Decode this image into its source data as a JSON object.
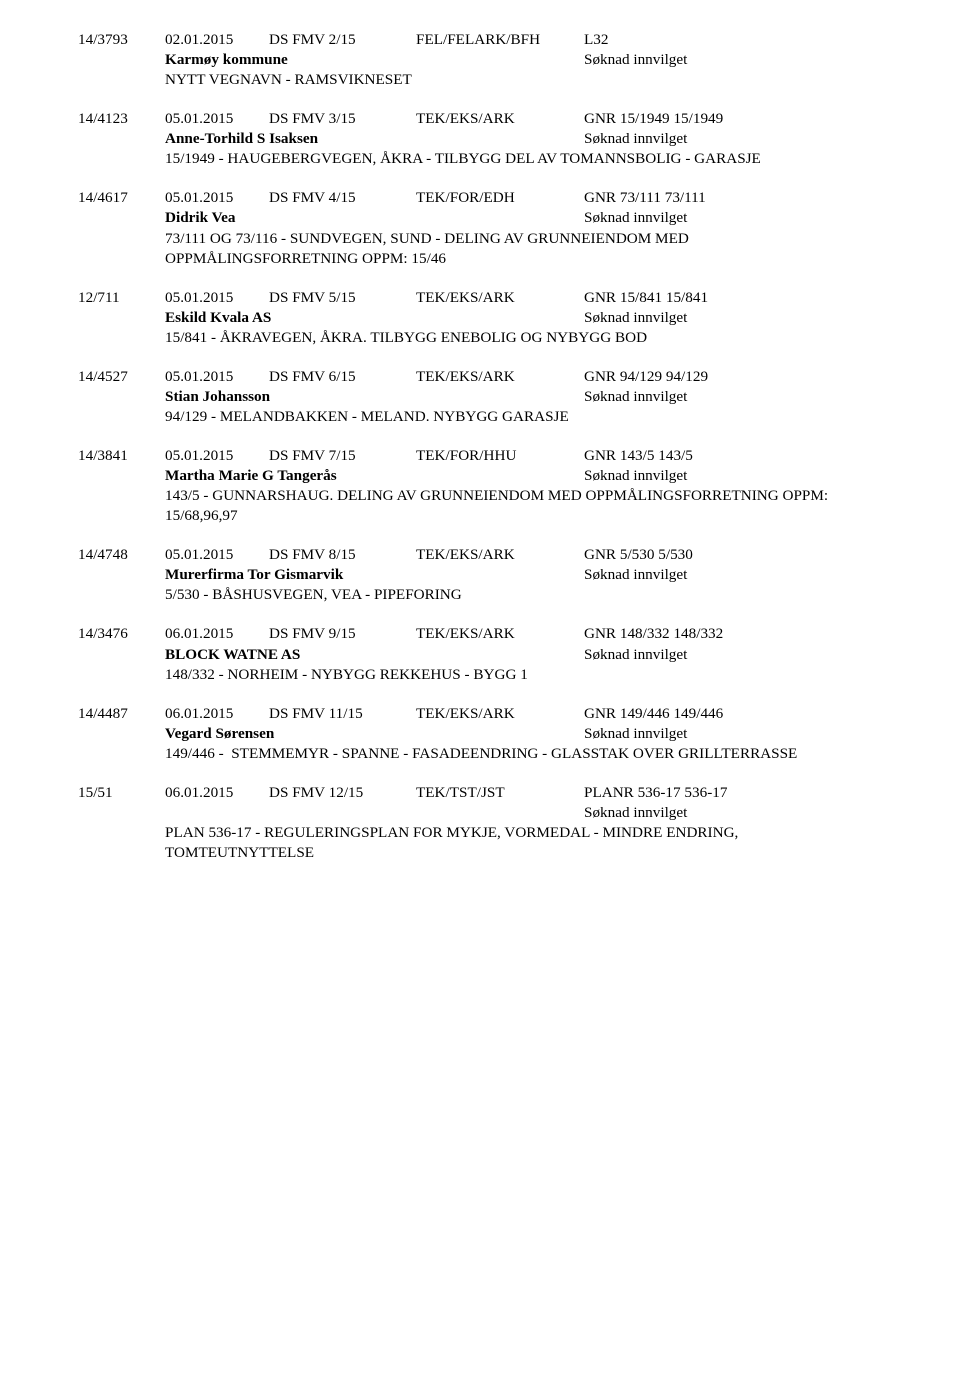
{
  "entries": [
    {
      "case_id": "14/3793",
      "date": "02.01.2015",
      "doc": "DS FMV 2/15",
      "ref": "FEL/FELARK/BFH",
      "gnr": "L32",
      "applicant": "Karmøy kommune",
      "status": "Søknad innvilget",
      "desc": "NYTT VEGNAVN - RAMSVIKNESET"
    },
    {
      "case_id": "14/4123",
      "date": "05.01.2015",
      "doc": "DS FMV 3/15",
      "ref": "TEK/EKS/ARK",
      "gnr": "GNR 15/1949 15/1949",
      "applicant": "Anne-Torhild S Isaksen",
      "status": "Søknad innvilget",
      "desc": "15/1949 - HAUGEBERGVEGEN, ÅKRA - TILBYGG DEL AV TOMANNSBOLIG - GARASJE"
    },
    {
      "case_id": "14/4617",
      "date": "05.01.2015",
      "doc": "DS FMV 4/15",
      "ref": "TEK/FOR/EDH",
      "gnr": "GNR 73/111 73/111",
      "applicant": "Didrik Vea",
      "status": "Søknad innvilget",
      "desc": "73/111 OG 73/116 - SUNDVEGEN, SUND - DELING AV GRUNNEIENDOM MED OPPMÅLINGSFORRETNING OPPM: 15/46"
    },
    {
      "case_id": "12/711",
      "date": "05.01.2015",
      "doc": "DS FMV 5/15",
      "ref": "TEK/EKS/ARK",
      "gnr": "GNR 15/841 15/841",
      "applicant": "Eskild Kvala AS",
      "status": "Søknad innvilget",
      "desc": "15/841 - ÅKRAVEGEN, ÅKRA. TILBYGG ENEBOLIG OG NYBYGG BOD"
    },
    {
      "case_id": "14/4527",
      "date": "05.01.2015",
      "doc": "DS FMV 6/15",
      "ref": "TEK/EKS/ARK",
      "gnr": "GNR 94/129 94/129",
      "applicant": "Stian Johansson",
      "status": "Søknad innvilget",
      "desc": "94/129 - MELANDBAKKEN - MELAND. NYBYGG GARASJE"
    },
    {
      "case_id": "14/3841",
      "date": "05.01.2015",
      "doc": "DS FMV 7/15",
      "ref": "TEK/FOR/HHU",
      "gnr": "GNR 143/5 143/5",
      "applicant": "Martha Marie G Tangerås",
      "status": "Søknad innvilget",
      "desc": "143/5 - GUNNARSHAUG. DELING AV GRUNNEIENDOM MED OPPMÅLINGSFORRETNING OPPM: 15/68,96,97"
    },
    {
      "case_id": "14/4748",
      "date": "05.01.2015",
      "doc": "DS FMV 8/15",
      "ref": "TEK/EKS/ARK",
      "gnr": "GNR 5/530 5/530",
      "applicant": "Murerfirma Tor Gismarvik",
      "status": "Søknad innvilget",
      "desc": "5/530 - BÅSHUSVEGEN, VEA - PIPEFORING"
    },
    {
      "case_id": "14/3476",
      "date": "06.01.2015",
      "doc": "DS FMV 9/15",
      "ref": "TEK/EKS/ARK",
      "gnr": "GNR 148/332 148/332",
      "applicant": "BLOCK WATNE AS",
      "status": "Søknad innvilget",
      "desc": "148/332 - NORHEIM - NYBYGG REKKEHUS - BYGG 1"
    },
    {
      "case_id": "14/4487",
      "date": "06.01.2015",
      "doc": "DS FMV 11/15",
      "ref": "TEK/EKS/ARK",
      "gnr": "GNR 149/446 149/446",
      "applicant": "Vegard Sørensen",
      "status": "Søknad innvilget",
      "desc": "149/446 -  STEMMEMYR - SPANNE - FASADEENDRING - GLASSTAK OVER GRILLTERRASSE"
    },
    {
      "case_id": "15/51",
      "date": "06.01.2015",
      "doc": "DS FMV 12/15",
      "ref": "TEK/TST/JST",
      "gnr": "PLANR 536-17 536-17",
      "applicant": "",
      "status": "Søknad innvilget",
      "desc": "PLAN 536-17 - REGULERINGSPLAN FOR MYKJE, VORMEDAL - MINDRE ENDRING, TOMTEUTNYTTELSE"
    }
  ]
}
